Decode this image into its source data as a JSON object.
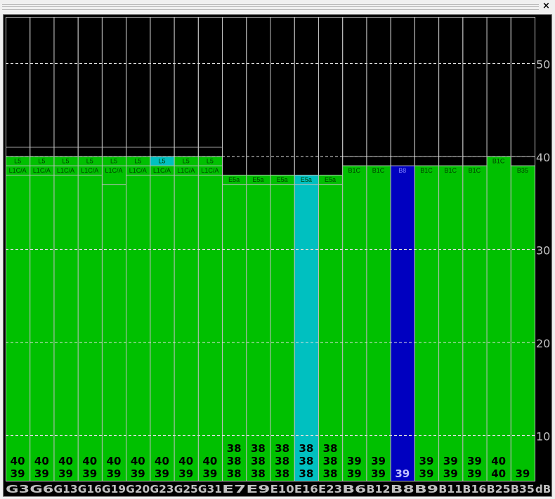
{
  "window": {
    "close_label": "×"
  },
  "chart_data": {
    "type": "bar",
    "unit_label": "dB",
    "ylim": [
      5,
      55
    ],
    "yticks": [
      10,
      20,
      30,
      40,
      50
    ],
    "grid": true,
    "colors": {
      "background": "#000000",
      "normal": "#00c000",
      "highlight": "#00c0c0",
      "selected": "#0000c0",
      "outline": "#c0c0c0",
      "axis_text": "#c0c0c0"
    },
    "satellites": [
      {
        "name": "G3",
        "signals": [
          "L5",
          "L1C/A"
        ],
        "tops": [
          40,
          39
        ],
        "extra_lines": [
          41,
          38
        ],
        "values": [
          "40",
          "39"
        ],
        "color": "normal"
      },
      {
        "name": "G6",
        "signals": [
          "L5",
          "L1C/A"
        ],
        "tops": [
          40,
          39
        ],
        "extra_lines": [
          41,
          38
        ],
        "values": [
          "40",
          "39"
        ],
        "color": "normal"
      },
      {
        "name": "G13",
        "signals": [
          "L5",
          "L1C/A"
        ],
        "tops": [
          40,
          39
        ],
        "extra_lines": [
          41,
          38
        ],
        "values": [
          "40",
          "39"
        ],
        "color": "normal"
      },
      {
        "name": "G16",
        "signals": [
          "L5",
          "L1C/A"
        ],
        "tops": [
          40,
          39
        ],
        "extra_lines": [
          41,
          38
        ],
        "values": [
          "40",
          "39"
        ],
        "color": "normal"
      },
      {
        "name": "G19",
        "signals": [
          "L5",
          "L1C/A"
        ],
        "tops": [
          40,
          39
        ],
        "extra_lines": [
          41,
          37
        ],
        "values": [
          "40",
          "39"
        ],
        "color": "normal"
      },
      {
        "name": "G20",
        "signals": [
          "L5",
          "L1C/A"
        ],
        "tops": [
          40,
          39
        ],
        "extra_lines": [
          41,
          38
        ],
        "values": [
          "40",
          "39"
        ],
        "color": "normal"
      },
      {
        "name": "G23",
        "signals": [
          "L5",
          "L1C/A"
        ],
        "tops": [
          40,
          39
        ],
        "extra_lines": [
          41,
          38
        ],
        "values": [
          "40",
          "39"
        ],
        "color": "normal",
        "highlight_top": true
      },
      {
        "name": "G25",
        "signals": [
          "L5",
          "L1C/A"
        ],
        "tops": [
          40,
          39
        ],
        "extra_lines": [
          41,
          38
        ],
        "values": [
          "40",
          "39"
        ],
        "color": "normal"
      },
      {
        "name": "G31",
        "signals": [
          "L5",
          "L1C/A"
        ],
        "tops": [
          40,
          39
        ],
        "extra_lines": [
          41,
          38
        ],
        "values": [
          "40",
          "39"
        ],
        "color": "normal"
      },
      {
        "name": "E7",
        "signals": [
          "E5a"
        ],
        "tops": [
          38
        ],
        "extra_lines": [
          37
        ],
        "values": [
          "38",
          "38",
          "38"
        ],
        "color": "normal"
      },
      {
        "name": "E9",
        "signals": [
          "E5a"
        ],
        "tops": [
          38
        ],
        "extra_lines": [
          37
        ],
        "values": [
          "38",
          "38",
          "38"
        ],
        "color": "normal"
      },
      {
        "name": "E10",
        "signals": [
          "E5a"
        ],
        "tops": [
          38
        ],
        "extra_lines": [
          37
        ],
        "values": [
          "38",
          "38",
          "38"
        ],
        "color": "normal"
      },
      {
        "name": "E16",
        "signals": [
          "E5a"
        ],
        "tops": [
          38
        ],
        "extra_lines": [
          37
        ],
        "values": [
          "38",
          "38",
          "38"
        ],
        "color": "highlight"
      },
      {
        "name": "E23",
        "signals": [
          "E5a"
        ],
        "tops": [
          38
        ],
        "extra_lines": [
          37
        ],
        "values": [
          "38",
          "38",
          "38"
        ],
        "color": "normal"
      },
      {
        "name": "B6",
        "signals": [
          "B1C"
        ],
        "tops": [
          39
        ],
        "extra_lines": [
          40
        ],
        "values": [
          "39",
          "39"
        ],
        "color": "normal"
      },
      {
        "name": "B12",
        "signals": [
          "B1C"
        ],
        "tops": [
          39
        ],
        "extra_lines": [
          40
        ],
        "values": [
          "39",
          "39"
        ],
        "color": "normal"
      },
      {
        "name": "B8",
        "signals": [
          "B8"
        ],
        "tops": [
          39
        ],
        "extra_lines": [
          40
        ],
        "values": [
          "39"
        ],
        "color": "selected"
      },
      {
        "name": "B9",
        "signals": [
          "B1C"
        ],
        "tops": [
          39
        ],
        "extra_lines": [
          40
        ],
        "values": [
          "39",
          "39"
        ],
        "color": "normal"
      },
      {
        "name": "B11",
        "signals": [
          "B1C"
        ],
        "tops": [
          39
        ],
        "extra_lines": [
          40
        ],
        "values": [
          "39",
          "39"
        ],
        "color": "normal"
      },
      {
        "name": "B16",
        "signals": [
          "B1C"
        ],
        "tops": [
          39
        ],
        "extra_lines": [
          40
        ],
        "values": [
          "39",
          "39"
        ],
        "color": "normal"
      },
      {
        "name": "B25",
        "signals": [
          "B1C"
        ],
        "tops": [
          40
        ],
        "extra_lines": [],
        "values": [
          "40",
          "40"
        ],
        "color": "normal"
      },
      {
        "name": "B35",
        "signals": [
          "B35"
        ],
        "tops": [
          39
        ],
        "extra_lines": [
          40
        ],
        "values": [
          "39"
        ],
        "color": "normal"
      }
    ]
  }
}
